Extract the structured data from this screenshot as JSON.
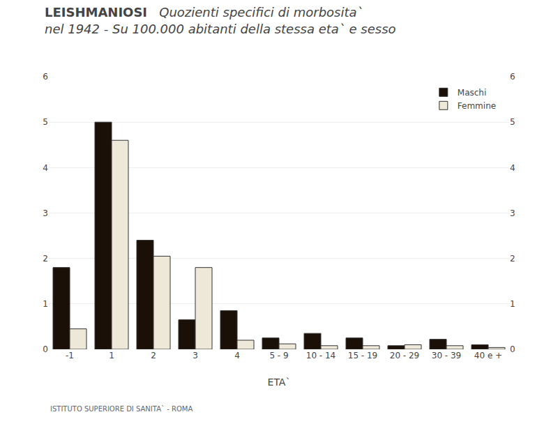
{
  "chart_data": {
    "type": "bar",
    "title": "LEISHMANIOSI",
    "subtitle": [
      "Quozienti specifici di morbosita`",
      "nel 1942 - Su 100.000 abitanti della stessa eta` e sesso"
    ],
    "xlabel": "ETA`",
    "annotations": [
      "ISTITUTO SUPERIORE DI SANITA` - ROMA"
    ],
    "categories": [
      "-1",
      "1",
      "2",
      "3",
      "4",
      "5 - 9",
      "10 - 14",
      "15 - 19",
      "20 - 29",
      "30 - 39",
      "40 e +"
    ],
    "series": [
      {
        "name": "Maschi",
        "color": "#1a1008",
        "values": [
          1.8,
          5.0,
          2.4,
          0.65,
          0.85,
          0.25,
          0.35,
          0.25,
          0.08,
          0.22,
          0.1
        ]
      },
      {
        "name": "Femmine",
        "color": "#ede8d8",
        "values": [
          0.45,
          4.6,
          2.05,
          1.8,
          0.2,
          0.12,
          0.08,
          0.08,
          0.1,
          0.08,
          0.04
        ]
      }
    ],
    "ylim": [
      0,
      6
    ],
    "yticks": [
      0,
      1,
      2,
      3,
      4,
      5,
      6
    ],
    "y2lim": [
      0,
      6
    ],
    "y2ticks": [
      0,
      1,
      2,
      3,
      4,
      5,
      6
    ],
    "grid": true,
    "legend": "upper right"
  }
}
